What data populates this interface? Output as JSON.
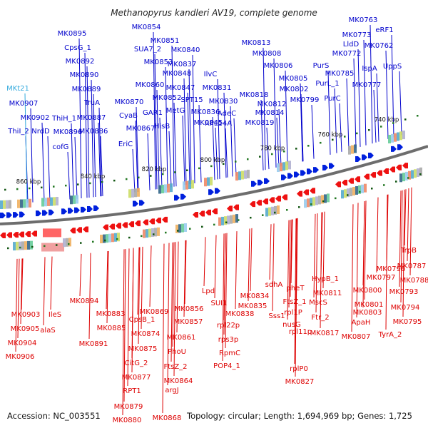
{
  "title": "Methanopyrus kandleri AV19, complete genome",
  "accession": "Accession: NC_003551",
  "topology": "Topology: circular; Length: 1,694,969 bp; Genes: 1,725",
  "colors": {
    "top": "#0000cc",
    "bottom": "#dd0000",
    "rna": "#33aadd",
    "backbone": "#777777"
  },
  "kbp_marks": [
    "860 kbp",
    "840 kbp",
    "820 kbp",
    "800 kbp",
    "780 kbp",
    "760 kbp",
    "740 kbp"
  ],
  "top_labels": [
    "MK0895",
    "MK0854",
    "MK0851",
    "SUA7_2",
    "MK0840",
    "MK0813",
    "MK0763",
    "MK0773",
    "eRF1",
    "LldD",
    "MK0762",
    "MK0772",
    "CpsG_1",
    "MK0892",
    "MK0853",
    "MK0837",
    "MK0808",
    "MK0806",
    "PurS",
    "MK0785",
    "IspA",
    "UppS",
    "MK0848",
    "IlvC",
    "MK0805",
    "PurL_1",
    "MK0777",
    "MK0890",
    "MK0860",
    "MK0847",
    "MK0831",
    "MK0802",
    "MK0889",
    "MK0852",
    "SPT15",
    "MK0830",
    "MK0818",
    "MK0812",
    "MK0799",
    "PurC",
    "TruA",
    "MK0870",
    "MetG",
    "MK0836",
    "AdeC",
    "MK0814",
    "MK0902",
    "ThiH_1",
    "MK0887",
    "CyaB",
    "GAR1",
    "MK0845",
    "RPL14A",
    "MK0819",
    "ThiI_2",
    "NrdD",
    "MK0896",
    "MK0886",
    "MK0867",
    "HisB",
    "cofG",
    "EriC",
    "MK0907",
    "MKt21"
  ],
  "bottom_labels": [
    "TrpB",
    "MK0796",
    "MK0787",
    "MK0797",
    "MK0788",
    "MK0811",
    "HypB_1",
    "MK0800",
    "MK0793",
    "sdhA",
    "pheT",
    "Lpd",
    "MK0834",
    "MK0801",
    "MK0894",
    "FtsZ_1",
    "MscS",
    "MK0803",
    "MK0794",
    "MK0856",
    "SUI1",
    "MK0835",
    "rpl1P",
    "Ftr_2",
    "ApaH",
    "MK0795",
    "MK0869",
    "MK0883",
    "MK0838",
    "Sss1",
    "MK0817",
    "MK0807",
    "TyrA_2",
    "MK0903",
    "IleS",
    "CpsB_1",
    "MK0857",
    "rpl22p",
    "nusG",
    "MK0885",
    "MK0874",
    "MK0861",
    "rpl11p",
    "MK0905",
    "alaS",
    "MK0891",
    "rps3p",
    "MK0904",
    "MK0875",
    "PhoU",
    "RpmC",
    "POP4_1",
    "rplP0",
    "MK0906",
    "FtsZ_2",
    "CitG_2",
    "MK0827",
    "MK0877",
    "MK0864",
    "argJ",
    "RPT1",
    "MK0879",
    "MK0880",
    "MK0868"
  ]
}
